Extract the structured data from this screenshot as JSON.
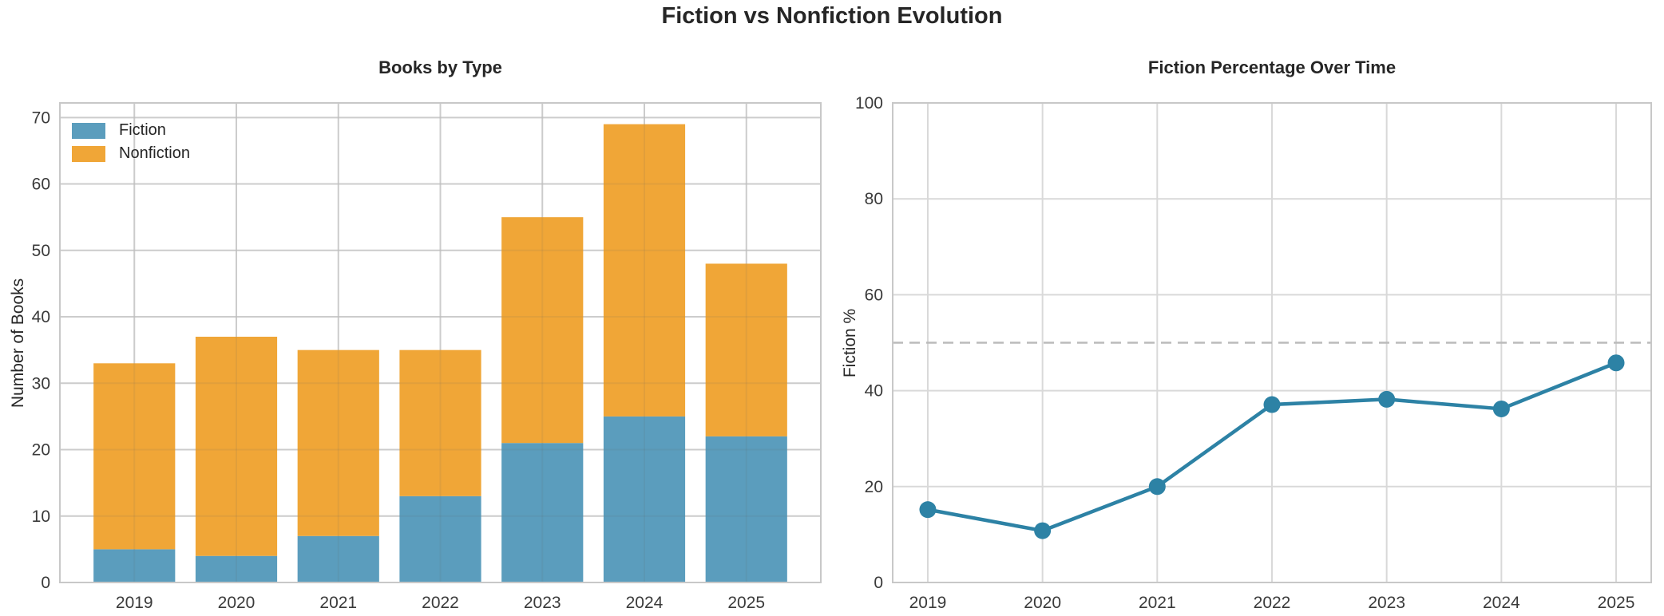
{
  "figure": {
    "title": "Fiction vs Nonfiction Evolution",
    "background_color": "#ffffff",
    "text_color": "#262626",
    "tick_color": "#3a3a3a",
    "grid_color": "#d9d9d9",
    "spine_color": "#c8c8c8"
  },
  "chart_data": [
    {
      "type": "bar",
      "stacked": true,
      "title": "Books by Type",
      "xlabel": "",
      "ylabel": "Number of Books",
      "categories": [
        "2019",
        "2020",
        "2021",
        "2022",
        "2023",
        "2024",
        "2025"
      ],
      "series": [
        {
          "name": "Fiction",
          "color": "#5b9dbd",
          "values": [
            5,
            4,
            7,
            13,
            21,
            25,
            22
          ]
        },
        {
          "name": "Nonfiction",
          "color": "#f0a637",
          "values": [
            28,
            33,
            28,
            22,
            34,
            44,
            26
          ]
        }
      ],
      "totals": [
        33,
        37,
        35,
        35,
        55,
        69,
        48
      ],
      "ylim": [
        0,
        72.2
      ],
      "yticks": [
        0,
        10,
        20,
        30,
        40,
        50,
        60,
        70
      ],
      "grid": true,
      "legend_position": "upper left"
    },
    {
      "type": "line",
      "title": "Fiction Percentage Over Time",
      "xlabel": "",
      "ylabel": "Fiction %",
      "categories": [
        "2019",
        "2020",
        "2021",
        "2022",
        "2023",
        "2024",
        "2025"
      ],
      "values": [
        15.2,
        10.8,
        20.0,
        37.1,
        38.2,
        36.2,
        45.8
      ],
      "line_color": "#2d82a5",
      "marker": "circle",
      "ylim": [
        0,
        100
      ],
      "yticks": [
        0,
        20,
        40,
        60,
        80,
        100
      ],
      "grid": true,
      "reference_line": {
        "y": 50,
        "style": "dashed",
        "color": "#bbbbbb"
      }
    }
  ]
}
